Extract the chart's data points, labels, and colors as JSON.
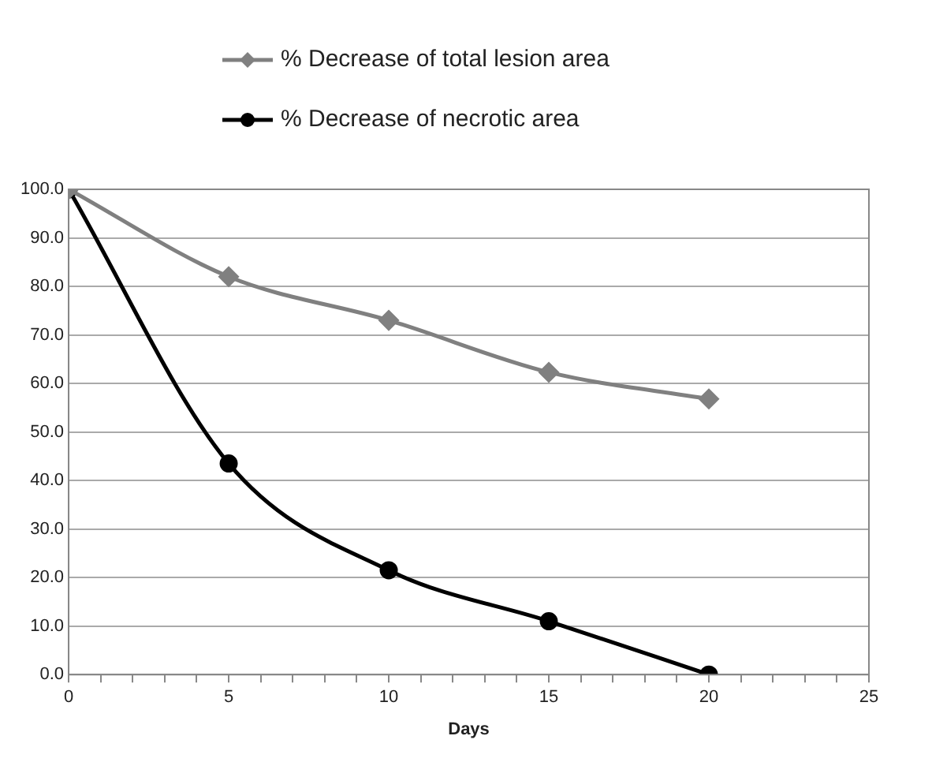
{
  "chart_data": {
    "type": "line",
    "xlabel": "Days",
    "x": [
      0,
      5,
      10,
      15,
      20
    ],
    "series": [
      {
        "name": "% Decrease of total lesion area",
        "color": "#808080",
        "marker": "diamond",
        "values": [
          100,
          82,
          73,
          62.3,
          56.8
        ]
      },
      {
        "name": "% Decrease of necrotic area",
        "color": "#000000",
        "marker": "circle",
        "values": [
          100,
          43.5,
          21.5,
          11,
          0
        ]
      }
    ],
    "xlim": [
      0,
      25
    ],
    "xticks": [
      0,
      {
        "value": 1,
        "label": null
      },
      {
        "value": 2,
        "label": null
      },
      {
        "value": 3,
        "label": null
      },
      {
        "value": 4,
        "label": null
      },
      5,
      {
        "value": 6,
        "label": null
      },
      {
        "value": 7,
        "label": null
      },
      {
        "value": 8,
        "label": null
      },
      {
        "value": 9,
        "label": null
      },
      10,
      {
        "value": 11,
        "label": null
      },
      {
        "value": 12,
        "label": null
      },
      {
        "value": 13,
        "label": null
      },
      {
        "value": 14,
        "label": null
      },
      15,
      {
        "value": 16,
        "label": null
      },
      {
        "value": 17,
        "label": null
      },
      {
        "value": 18,
        "label": null
      },
      {
        "value": 19,
        "label": null
      },
      20,
      {
        "value": 21,
        "label": null
      },
      {
        "value": 22,
        "label": null
      },
      {
        "value": 23,
        "label": null
      },
      {
        "value": 24,
        "label": null
      },
      25
    ],
    "ylim": [
      0,
      100
    ],
    "yticks": [
      {
        "value": 0,
        "label": "0.0"
      },
      {
        "value": 10,
        "label": "10.0"
      },
      {
        "value": 20,
        "label": "20.0"
      },
      {
        "value": 30,
        "label": "30.0"
      },
      {
        "value": 40,
        "label": "40.0"
      },
      {
        "value": 50,
        "label": "50.0"
      },
      {
        "value": 60,
        "label": "60.0"
      },
      {
        "value": 70,
        "label": "70.0"
      },
      {
        "value": 80,
        "label": "80.0"
      },
      {
        "value": 90,
        "label": "90.0"
      },
      {
        "value": 100,
        "label": "100.0"
      }
    ],
    "grid": "y",
    "legend": "top",
    "line_style": "solid"
  }
}
